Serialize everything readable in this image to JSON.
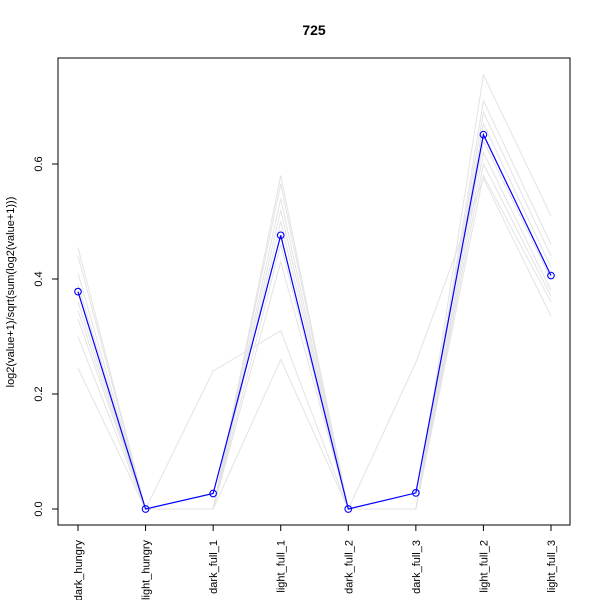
{
  "chart_data": {
    "type": "line",
    "title": "725",
    "xlabel": "",
    "ylabel": "log2(value+1)/sqrt(sum(log2(value+1)))",
    "categories": [
      "dark_hungry",
      "light_hungry",
      "dark_full_1",
      "light_full_1",
      "dark_full_2",
      "dark_full_3",
      "light_full_2",
      "light_full_3"
    ],
    "ylim": [
      -0.02,
      0.78
    ],
    "yticks": [
      0.0,
      0.2,
      0.4,
      0.6
    ],
    "ytick_labels": [
      "0.0",
      "0.2",
      "0.4",
      "0.6"
    ],
    "grid": false,
    "highlight": {
      "color": "#0000ff",
      "values": [
        0.378,
        0.0,
        0.027,
        0.476,
        0.0,
        0.028,
        0.651,
        0.406
      ]
    },
    "background_series_color": "#e3e3e3",
    "background_series": [
      [
        0.455,
        0.0,
        0.0,
        0.58,
        0.0,
        0.0,
        0.755,
        0.51
      ],
      [
        0.44,
        0.0,
        0.0,
        0.565,
        0.0,
        0.0,
        0.71,
        0.46
      ],
      [
        0.41,
        0.0,
        0.0,
        0.54,
        0.0,
        0.0,
        0.69,
        0.44
      ],
      [
        0.39,
        0.0,
        0.0,
        0.52,
        0.0,
        0.0,
        0.67,
        0.42
      ],
      [
        0.36,
        0.0,
        0.0,
        0.5,
        0.0,
        0.0,
        0.64,
        0.4
      ],
      [
        0.345,
        0.0,
        0.0,
        0.46,
        0.0,
        0.0,
        0.62,
        0.38
      ],
      [
        0.33,
        0.0,
        0.0,
        0.43,
        0.0,
        0.0,
        0.6,
        0.37
      ],
      [
        0.3,
        0.0,
        0.24,
        0.31,
        0.0,
        0.0,
        0.58,
        0.36
      ],
      [
        0.245,
        0.0,
        0.0,
        0.26,
        0.0,
        0.255,
        0.575,
        0.335
      ]
    ]
  }
}
